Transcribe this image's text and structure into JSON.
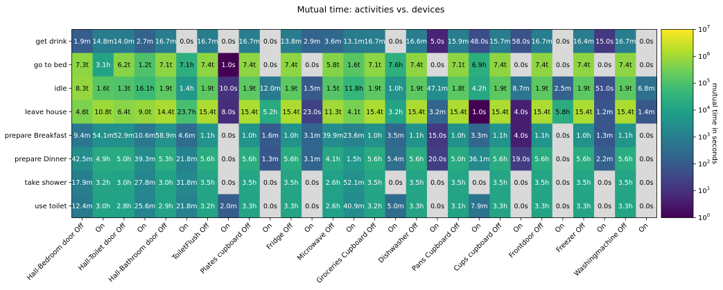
{
  "chart_data": {
    "type": "heatmap",
    "title": "Mutual time: activities vs. devices",
    "rows": [
      "get drink",
      "go to bed",
      "idle",
      "leave house",
      "prepare Breakfast",
      "prepare Dinner",
      "take shower",
      "use toilet"
    ],
    "columns": [
      "Hall-Bedroom door Off",
      "On",
      "Hall-Toilet door Off",
      "On",
      "Hall-Bathroom door Off",
      "On",
      "ToiletFlush Off",
      "On",
      "Plates cupboard Off",
      "On",
      "Fridge Off",
      "On",
      "Microwave Off",
      "On",
      "Groceries Cupboard Off",
      "On",
      "Dishwasher Off",
      "On",
      "Pans Cupboard Off",
      "On",
      "Cups cupboard Off",
      "On",
      "Frontdoor Off",
      "On",
      "Freezer Off",
      "On",
      "Washingmachine Off",
      "On"
    ],
    "cells": [
      [
        "1.9m",
        "14.8m",
        "14.0m",
        "2.7m",
        "16.7m",
        "0.0s",
        "16.7m",
        "0.0s",
        "16.7m",
        "0.0s",
        "13.8m",
        "2.9m",
        "3.6m",
        "13.1m",
        "16.7m",
        "0.0s",
        "16.6m",
        "5.0s",
        "15.9m",
        "48.0s",
        "15.7m",
        "58.0s",
        "16.7m",
        "0.0s",
        "16.4m",
        "15.0s",
        "16.7m",
        "0.0s"
      ],
      [
        "7.3t",
        "3.1h",
        "6.2t",
        "1.2t",
        "7.1t",
        "7.1h",
        "7.4t",
        "1.0s",
        "7.4t",
        "0.0s",
        "7.4t",
        "0.0s",
        "5.8t",
        "1.6t",
        "7.1t",
        "7.6h",
        "7.4t",
        "0.0s",
        "7.1t",
        "6.9h",
        "7.4t",
        "0.0s",
        "7.4t",
        "0.0s",
        "7.4t",
        "0.0s",
        "7.4t",
        "0.0s"
      ],
      [
        "8.3t",
        "1.6t",
        "1.3t",
        "16.1h",
        "1.9t",
        "1.4h",
        "1.9t",
        "10.0s",
        "1.9t",
        "12.0m",
        "1.9t",
        "1.5m",
        "1.5t",
        "11.8h",
        "1.9t",
        "1.0h",
        "1.9t",
        "47.1m",
        "1.8t",
        "4.2h",
        "1.9t",
        "8.7m",
        "1.9t",
        "2.5m",
        "1.9t",
        "51.0s",
        "1.9t",
        "6.8m"
      ],
      [
        "4.6t",
        "10.8t",
        "6.4t",
        "9.0t",
        "14.4t",
        "23.7h",
        "15.4t",
        "8.0s",
        "15.4t",
        "5.2h",
        "15.4t",
        "23.0s",
        "11.3t",
        "4.1t",
        "15.4t",
        "3.2h",
        "15.4t",
        "3.2m",
        "15.4t",
        "1.0s",
        "15.4t",
        "4.0s",
        "15.4t",
        "5.8h",
        "15.4t",
        "1.2m",
        "15.4t",
        "1.4m"
      ],
      [
        "9.4m",
        "54.1m",
        "52.9m",
        "10.6m",
        "58.9m",
        "4.6m",
        "1.1h",
        "0.0s",
        "1.0h",
        "1.6m",
        "1.0h",
        "3.1m",
        "39.9m",
        "23.6m",
        "1.0h",
        "3.5m",
        "1.1h",
        "15.0s",
        "1.0h",
        "3.3m",
        "1.1h",
        "4.0s",
        "1.1h",
        "0.0s",
        "1.0h",
        "1.3m",
        "1.1h",
        "0.0s"
      ],
      [
        "42.5m",
        "4.9h",
        "5.0h",
        "39.3m",
        "5.3h",
        "21.8m",
        "5.6h",
        "0.0s",
        "5.6h",
        "1.3m",
        "5.6h",
        "3.1m",
        "4.1h",
        "1.5h",
        "5.6h",
        "5.4m",
        "5.6h",
        "20.0s",
        "5.0h",
        "36.1m",
        "5.6h",
        "19.0s",
        "5.6h",
        "0.0s",
        "5.6h",
        "2.2m",
        "5.6h",
        "0.0s"
      ],
      [
        "17.9m",
        "3.2h",
        "3.0h",
        "27.8m",
        "3.0h",
        "31.8m",
        "3.5h",
        "0.0s",
        "3.5h",
        "0.0s",
        "3.5h",
        "0.0s",
        "2.6h",
        "52.1m",
        "3.5h",
        "0.0s",
        "3.5h",
        "0.0s",
        "3.5h",
        "0.0s",
        "3.5h",
        "0.0s",
        "3.5h",
        "0.0s",
        "3.5h",
        "0.0s",
        "3.5h",
        "0.0s"
      ],
      [
        "12.4m",
        "3.0h",
        "2.8h",
        "25.6m",
        "2.9h",
        "21.8m",
        "3.2h",
        "2.0m",
        "3.3h",
        "0.0s",
        "3.3h",
        "0.0s",
        "2.6h",
        "40.9m",
        "3.2h",
        "5.0m",
        "3.3h",
        "0.0s",
        "3.1h",
        "7.9m",
        "3.3h",
        "0.0s",
        "3.3h",
        "0.0s",
        "3.3h",
        "0.0s",
        "3.3h",
        "0.0s"
      ]
    ],
    "colorbar": {
      "label": "mutual time in seconds",
      "scale": "log",
      "range": [
        1,
        10000000
      ],
      "tick_values": [
        1,
        10,
        100,
        1000,
        10000,
        100000,
        1000000,
        10000000
      ],
      "tick_exponents": [
        "0",
        "1",
        "2",
        "3",
        "4",
        "5",
        "6",
        "7"
      ],
      "tick_base": "10"
    },
    "zero_color": "#d9d9d9",
    "colormap": [
      "#440154",
      "#482878",
      "#3e4989",
      "#31688e",
      "#26828e",
      "#1f9e89",
      "#35b779",
      "#6ece58",
      "#b5de2b",
      "#fde725"
    ]
  }
}
